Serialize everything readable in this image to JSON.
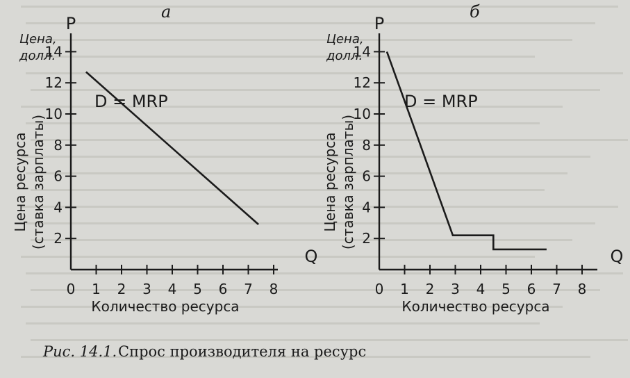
{
  "caption": {
    "label": "Рис. 14.1.",
    "text": "Спрос производителя на ресурс"
  },
  "chart_data": [
    {
      "panel": "а",
      "type": "line",
      "ycap": [
        "Цена,",
        "долл."
      ],
      "yaxis_letter": "P",
      "xaxis_letter": "Q",
      "ylabel": [
        "Цена ресурса",
        "(ставка зарплаты)"
      ],
      "xlabel": "Количество ресурса",
      "xticks": [
        "0",
        "1",
        "2",
        "3",
        "4",
        "5",
        "6",
        "7",
        "8"
      ],
      "yticks": [
        "2",
        "4",
        "6",
        "8",
        "10",
        "12",
        "14"
      ],
      "xlim": [
        0,
        8.5
      ],
      "ylim": [
        0,
        15
      ],
      "series": [
        {
          "name": "D = MRP",
          "points": [
            [
              0.6,
              12.7
            ],
            [
              7.4,
              2.9
            ]
          ]
        }
      ]
    },
    {
      "panel": "б",
      "type": "line",
      "ycap": [
        "Цена,",
        "долл."
      ],
      "yaxis_letter": "P",
      "xaxis_letter": "Q",
      "ylabel": [
        "Цена ресурса",
        "(ставка зарплаты)"
      ],
      "xlabel": "Количество ресурса",
      "xticks": [
        "0",
        "1",
        "2",
        "3",
        "4",
        "5",
        "6",
        "7",
        "8"
      ],
      "yticks": [
        "2",
        "4",
        "6",
        "8",
        "10",
        "12",
        "14"
      ],
      "xlim": [
        0,
        8.5
      ],
      "ylim": [
        0,
        15
      ],
      "series": [
        {
          "name": "D = MRP",
          "points": [
            [
              0.3,
              14.0
            ],
            [
              2.9,
              2.2
            ],
            [
              4.5,
              2.2
            ],
            [
              4.5,
              1.3
            ],
            [
              6.6,
              1.3
            ]
          ]
        }
      ]
    }
  ]
}
